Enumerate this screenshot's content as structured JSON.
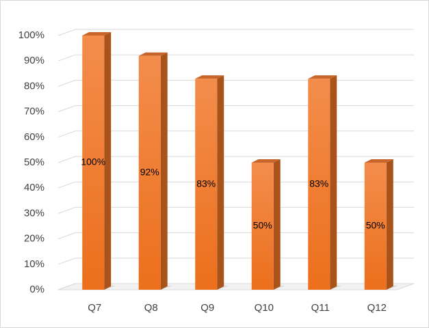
{
  "chart_data": {
    "type": "bar3d",
    "categories": [
      "Q7",
      "Q8",
      "Q9",
      "Q10",
      "Q11",
      "Q12"
    ],
    "values": [
      100,
      92,
      83,
      50,
      83,
      50
    ],
    "value_labels": [
      "100%",
      "92%",
      "83%",
      "50%",
      "83%",
      "50%"
    ],
    "color": "#ef7a2c",
    "ylim": [
      0,
      100
    ],
    "yticks": [
      {
        "value": 0,
        "label": "0%"
      },
      {
        "value": 10,
        "label": "10%"
      },
      {
        "value": 20,
        "label": "20%"
      },
      {
        "value": 30,
        "label": "30%"
      },
      {
        "value": 40,
        "label": "40%"
      },
      {
        "value": 50,
        "label": "50%"
      },
      {
        "value": 60,
        "label": "60%"
      },
      {
        "value": 70,
        "label": "70%"
      },
      {
        "value": 80,
        "label": "80%"
      },
      {
        "value": 90,
        "label": "90%"
      },
      {
        "value": 100,
        "label": "100%"
      }
    ],
    "grid": true
  }
}
